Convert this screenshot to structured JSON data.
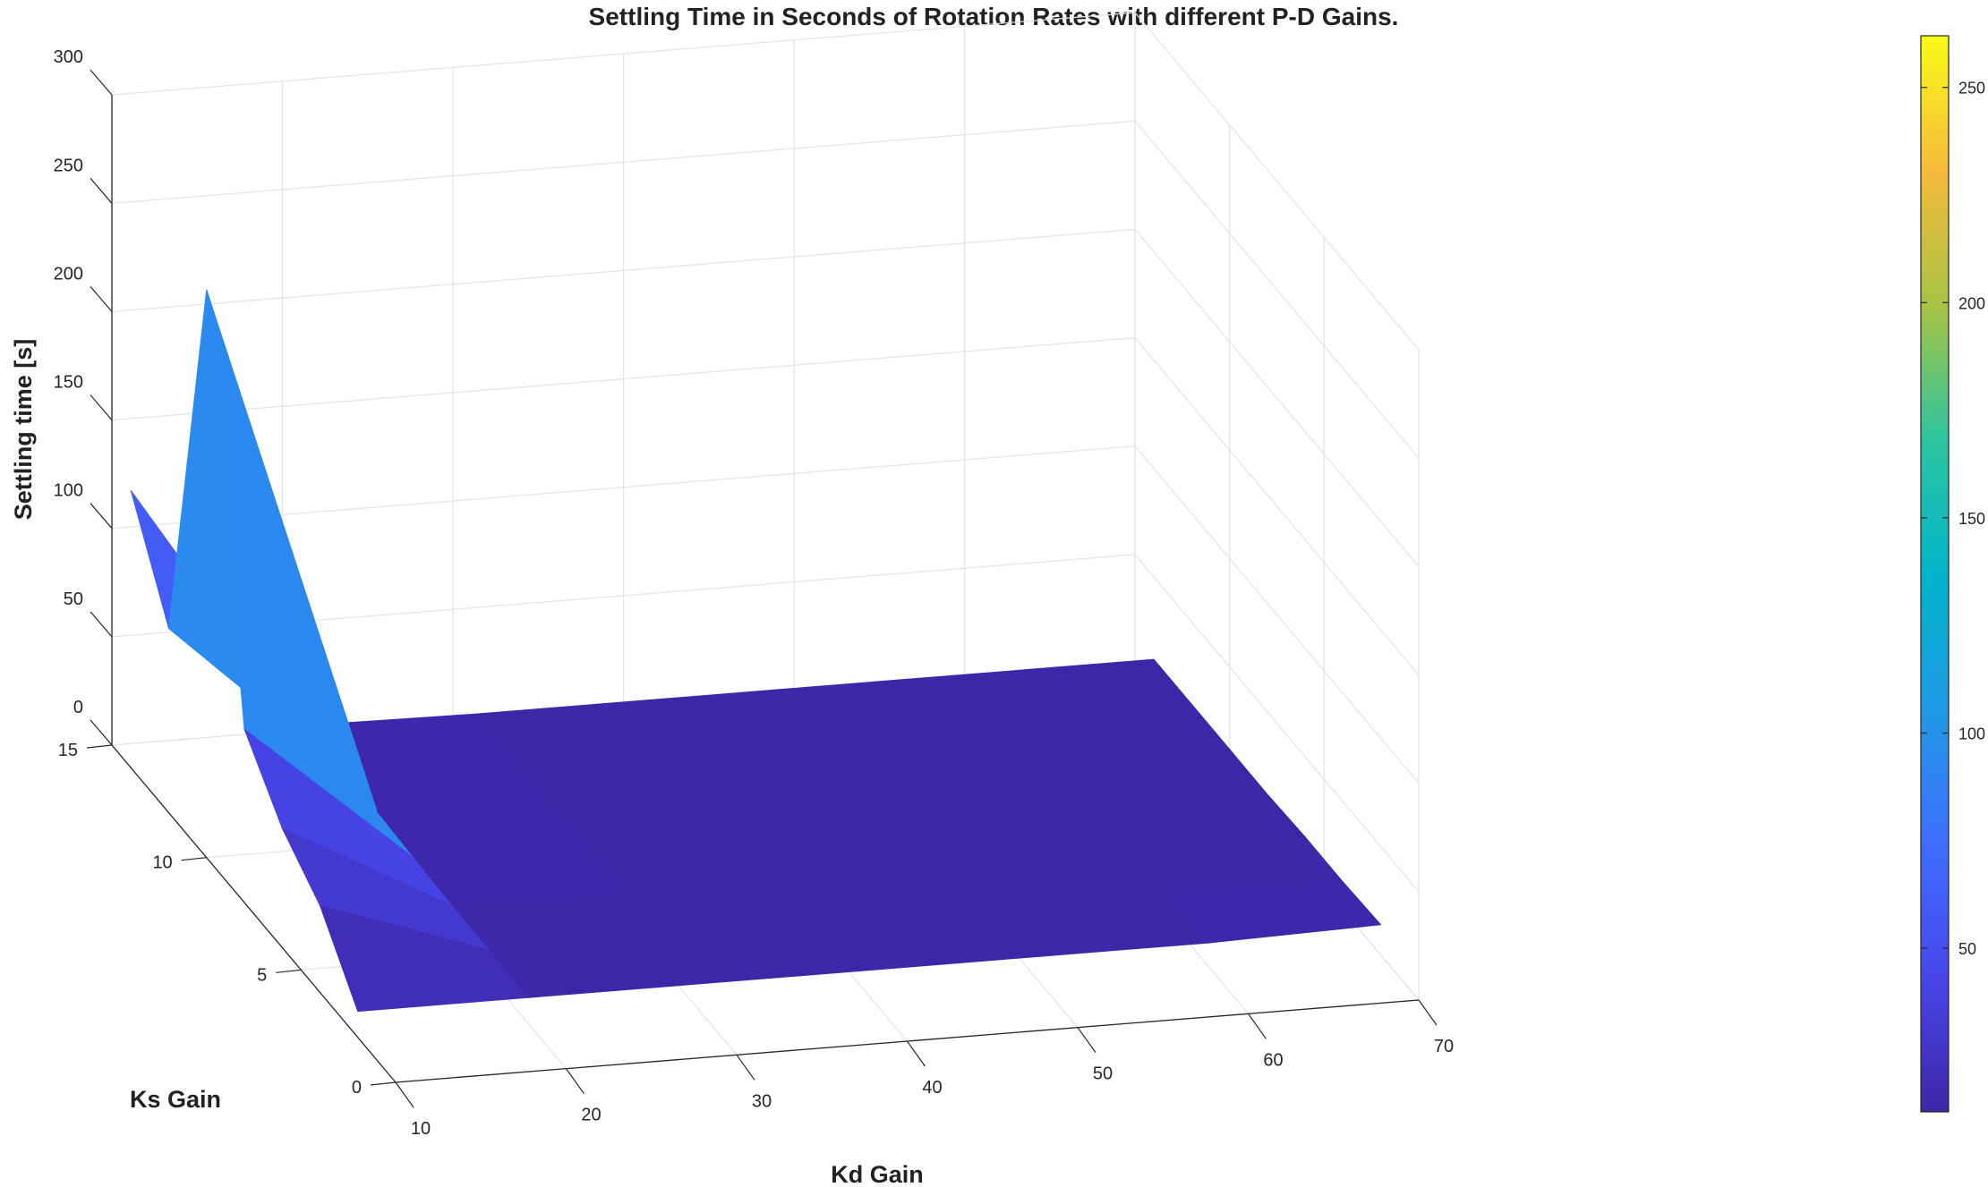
{
  "chart_data": {
    "type": "surface",
    "title": "Settling Time in Seconds of Rotation Rates with different P-D Gains.",
    "xlabel": "Kd Gain",
    "ylabel": "Ks Gain",
    "zlabel": "Settling time [s]",
    "x_ticks": [
      "10",
      "20",
      "30",
      "40",
      "50",
      "60",
      "70"
    ],
    "y_ticks": [
      "0",
      "5",
      "10",
      "15"
    ],
    "z_ticks": [
      "0",
      "50",
      "100",
      "150",
      "200",
      "250",
      "300"
    ],
    "colorbar_ticks": [
      "50",
      "100",
      "150",
      "200",
      "250"
    ],
    "xlim": [
      10,
      70
    ],
    "ylim": [
      0,
      15
    ],
    "zlim": [
      0,
      300
    ],
    "clim": [
      12,
      262
    ],
    "grid": true,
    "colormap": "parula",
    "x": [
      10,
      20,
      30,
      40,
      50,
      60,
      70
    ],
    "y": [
      2,
      4,
      6,
      8,
      10,
      12,
      14
    ],
    "z": [
      [
        12,
        12,
        12,
        12,
        12,
        12,
        14
      ],
      [
        40,
        13,
        12,
        12,
        12,
        12,
        13
      ],
      [
        55,
        13,
        12,
        12,
        12,
        12,
        13
      ],
      [
        80,
        14,
        12,
        12,
        12,
        12,
        12
      ],
      [
        262,
        15,
        12,
        12,
        12,
        12,
        12
      ],
      [
        85,
        14,
        12,
        12,
        12,
        12,
        12
      ],
      [
        128,
        13,
        12,
        12,
        12,
        12,
        12
      ]
    ]
  }
}
